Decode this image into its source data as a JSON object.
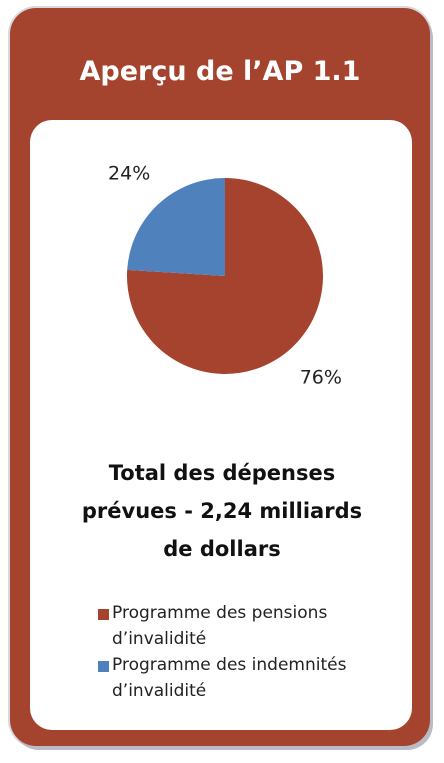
{
  "header": {
    "title": "Aperçu de l’AP 1.1"
  },
  "chart_data": {
    "type": "pie",
    "title": "Total des dépenses prévues - 2,24 milliards de dollars",
    "categories": [
      "Programme des pensions d’invalidité",
      "Programme des indemnités d’invalidité"
    ],
    "values": [
      76,
      24
    ],
    "value_labels": [
      "76%",
      "24%"
    ],
    "colors": [
      "#a5432e",
      "#4f81bd"
    ],
    "legend": "bottom"
  }
}
